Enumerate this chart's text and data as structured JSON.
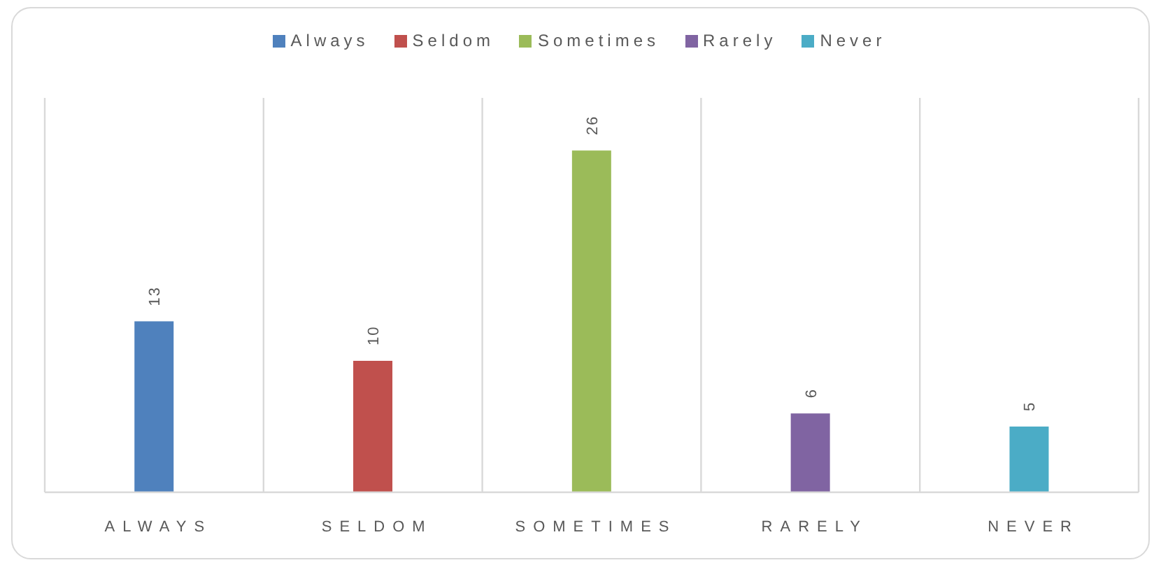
{
  "chart_data": {
    "type": "bar",
    "categories": [
      "ALWAYS",
      "SELDOM",
      "SOMETIMES",
      "RARELY",
      "NEVER"
    ],
    "series": [
      {
        "name": "Always",
        "color": "#4f81bd",
        "values": [
          13,
          null,
          null,
          null,
          null
        ]
      },
      {
        "name": "Seldom",
        "color": "#c0504d",
        "values": [
          null,
          10,
          null,
          null,
          null
        ]
      },
      {
        "name": "Sometimes",
        "color": "#9bbb59",
        "values": [
          null,
          null,
          26,
          null,
          null
        ]
      },
      {
        "name": "Rarely",
        "color": "#8064a2",
        "values": [
          null,
          null,
          null,
          6,
          null
        ]
      },
      {
        "name": "Never",
        "color": "#4bacc6",
        "values": [
          null,
          null,
          null,
          null,
          5
        ]
      }
    ],
    "stacked": true,
    "data_labels": true,
    "legend": "top",
    "grid": "x"
  }
}
